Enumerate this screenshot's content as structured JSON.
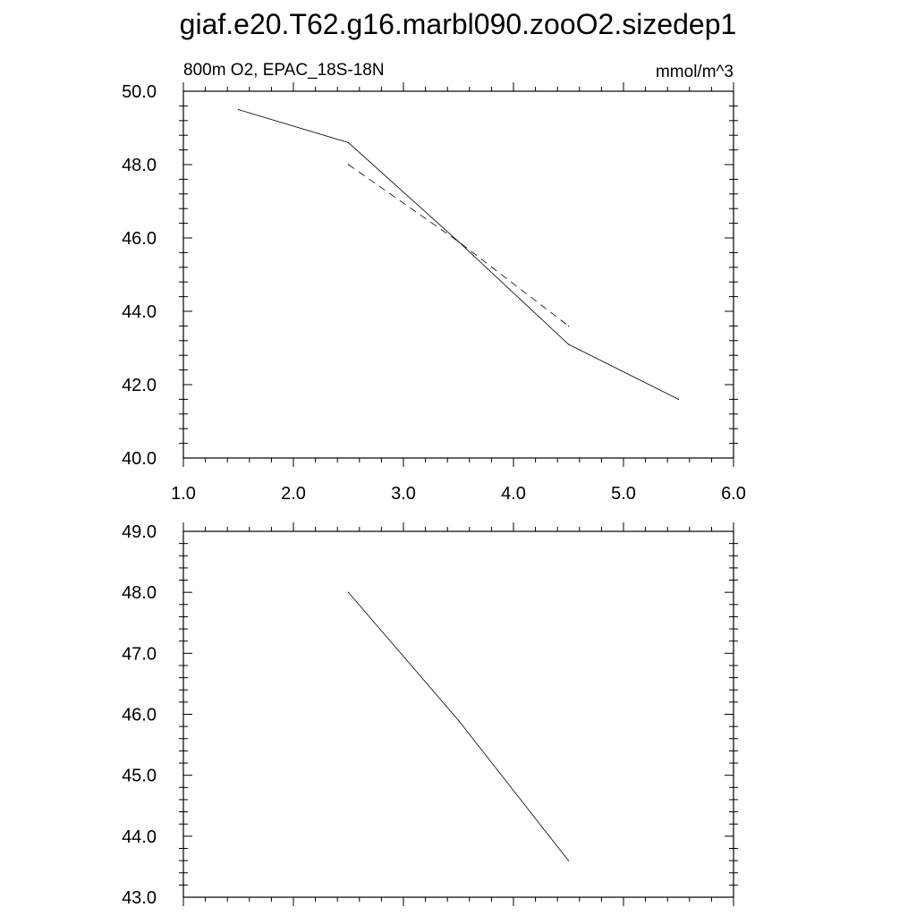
{
  "title": "giaf.e20.T62.g16.marbl090.zooO2.sizedep1",
  "chart_data": [
    {
      "type": "line",
      "left_label": "800m O2, EPAC_18S-18N",
      "right_label": "mmol/m^3",
      "xlim": [
        1.0,
        6.0
      ],
      "ylim": [
        40.0,
        50.0
      ],
      "x_ticks": [
        "1.0",
        "2.0",
        "3.0",
        "4.0",
        "5.0",
        "6.0"
      ],
      "y_ticks": [
        "40.0",
        "42.0",
        "44.0",
        "46.0",
        "48.0",
        "50.0"
      ],
      "x_ticks_labeled": true,
      "grid": false,
      "series": [
        {
          "style": "solid",
          "x": [
            1.5,
            2.5,
            3.5,
            4.5,
            5.5
          ],
          "y": [
            49.5,
            48.6,
            45.9,
            43.1,
            41.6
          ]
        },
        {
          "style": "dashed",
          "x": [
            2.5,
            3.5,
            4.5
          ],
          "y": [
            48.0,
            45.9,
            43.6
          ]
        }
      ]
    },
    {
      "type": "line",
      "xlim": [
        1.0,
        6.0
      ],
      "ylim": [
        43.0,
        49.0
      ],
      "x_ticks": [
        "1.0",
        "2.0",
        "3.0",
        "4.0",
        "5.0",
        "6.0"
      ],
      "y_ticks": [
        "43.0",
        "44.0",
        "45.0",
        "46.0",
        "47.0",
        "48.0",
        "49.0"
      ],
      "x_ticks_labeled": false,
      "grid": false,
      "series": [
        {
          "style": "solid",
          "x": [
            2.5,
            3.5,
            4.5
          ],
          "y": [
            48.0,
            45.9,
            43.6
          ]
        }
      ]
    }
  ]
}
